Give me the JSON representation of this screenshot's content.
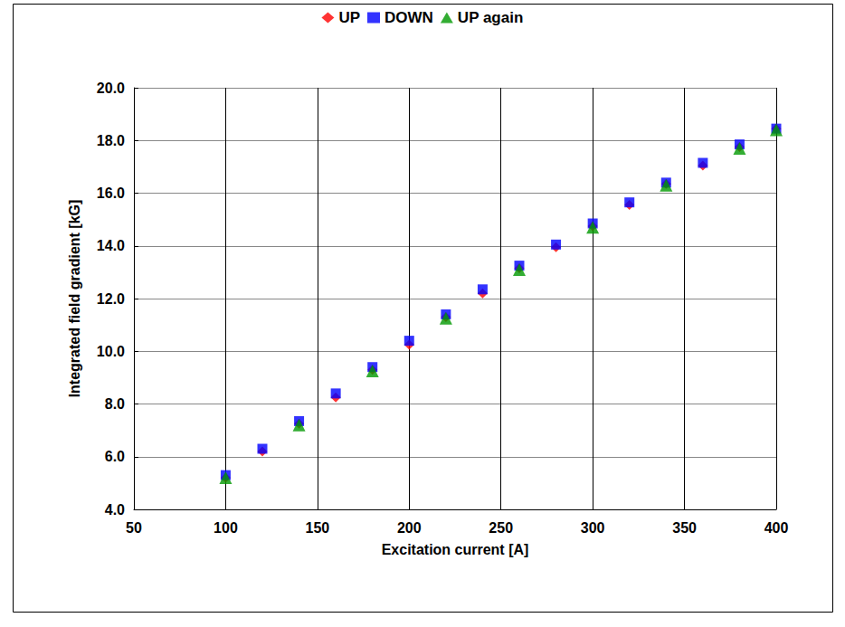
{
  "chart_data": {
    "type": "scatter",
    "x_label": "Excitation current [A]",
    "y_label": "Integrated field gradient [kG]",
    "xlim": [
      50,
      400
    ],
    "xticks": [
      50,
      100,
      150,
      200,
      250,
      300,
      350,
      400
    ],
    "ylim": [
      4,
      20
    ],
    "yticks": [
      {
        "value": 4,
        "label": "4.0"
      },
      {
        "value": 6,
        "label": "6.0"
      },
      {
        "value": 8,
        "label": "8.0"
      },
      {
        "value": 10,
        "label": "10.0"
      },
      {
        "value": 12,
        "label": "12.0"
      },
      {
        "value": 14,
        "label": "14.0"
      },
      {
        "value": 16,
        "label": "16.0"
      },
      {
        "value": 18,
        "label": "18.0"
      },
      {
        "value": 20,
        "label": "20.0"
      }
    ],
    "grid": true,
    "legend": "top",
    "series": [
      {
        "name": "UP",
        "color": "#ff0000",
        "marker": "diamond",
        "x": [
          100,
          120,
          140,
          160,
          180,
          200,
          220,
          240,
          260,
          280,
          300,
          320,
          340,
          360,
          380,
          400
        ],
        "values": [
          5.2,
          6.2,
          7.25,
          8.25,
          9.3,
          10.25,
          11.3,
          12.2,
          13.15,
          13.95,
          14.75,
          15.55,
          16.35,
          17.05,
          17.75,
          18.45
        ]
      },
      {
        "name": "DOWN",
        "color": "#0000ff",
        "marker": "square",
        "x": [
          100,
          120,
          140,
          160,
          180,
          200,
          220,
          240,
          260,
          280,
          300,
          320,
          340,
          360,
          380,
          400
        ],
        "values": [
          5.3,
          6.3,
          7.35,
          8.4,
          9.4,
          10.4,
          11.4,
          12.35,
          13.25,
          14.05,
          14.85,
          15.65,
          16.4,
          17.15,
          17.85,
          18.45
        ]
      },
      {
        "name": "UP again",
        "color": "#009900",
        "marker": "triangle",
        "x": [
          100,
          140,
          180,
          220,
          260,
          300,
          340,
          380,
          400
        ],
        "values": [
          5.2,
          7.2,
          9.25,
          11.25,
          13.1,
          14.7,
          16.3,
          17.7,
          18.4
        ]
      }
    ]
  }
}
